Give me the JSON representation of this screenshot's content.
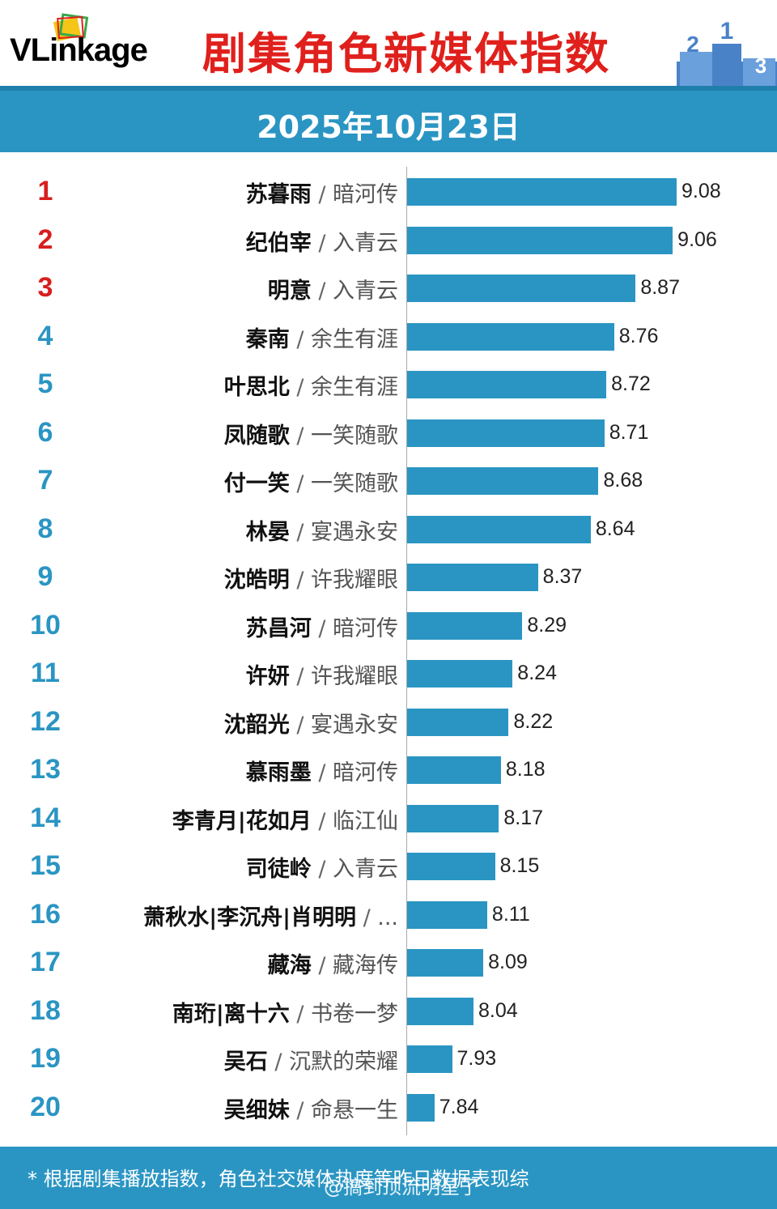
{
  "header": {
    "logo_text": "VLinkage",
    "title": "剧集角色新媒体指数"
  },
  "date": "2025年10月23日",
  "colors": {
    "accent": "#2a95c3",
    "title_red": "#e0201c",
    "top_rank_red": "#d81e1e",
    "rank_blue": "#2a95c3"
  },
  "chart_data": {
    "type": "bar",
    "orientation": "horizontal",
    "title": "剧集角色新媒体指数",
    "xlim": [
      7.7,
      9.2
    ],
    "grid": false,
    "rows": [
      {
        "rank": "1",
        "name": "苏暮雨",
        "drama": "暗河传",
        "value": 9.08,
        "value_label": "9.08"
      },
      {
        "rank": "2",
        "name": "纪伯宰",
        "drama": "入青云",
        "value": 9.06,
        "value_label": "9.06"
      },
      {
        "rank": "3",
        "name": "明意",
        "drama": "入青云",
        "value": 8.87,
        "value_label": "8.87"
      },
      {
        "rank": "4",
        "name": "秦南",
        "drama": "余生有涯",
        "value": 8.76,
        "value_label": "8.76"
      },
      {
        "rank": "5",
        "name": "叶思北",
        "drama": "余生有涯",
        "value": 8.72,
        "value_label": "8.72"
      },
      {
        "rank": "6",
        "name": "凤随歌",
        "drama": "一笑随歌",
        "value": 8.71,
        "value_label": "8.71"
      },
      {
        "rank": "7",
        "name": "付一笑",
        "drama": "一笑随歌",
        "value": 8.68,
        "value_label": "8.68"
      },
      {
        "rank": "8",
        "name": "林晏",
        "drama": "宴遇永安",
        "value": 8.64,
        "value_label": "8.64"
      },
      {
        "rank": "9",
        "name": "沈皓明",
        "drama": "许我耀眼",
        "value": 8.37,
        "value_label": "8.37"
      },
      {
        "rank": "10",
        "name": "苏昌河",
        "drama": "暗河传",
        "value": 8.29,
        "value_label": "8.29"
      },
      {
        "rank": "11",
        "name": "许妍",
        "drama": "许我耀眼",
        "value": 8.24,
        "value_label": "8.24"
      },
      {
        "rank": "12",
        "name": "沈韶光",
        "drama": "宴遇永安",
        "value": 8.22,
        "value_label": "8.22"
      },
      {
        "rank": "13",
        "name": "慕雨墨",
        "drama": "暗河传",
        "value": 8.18,
        "value_label": "8.18"
      },
      {
        "rank": "14",
        "name": "李青月|花如月",
        "drama": "临江仙",
        "value": 8.17,
        "value_label": "8.17"
      },
      {
        "rank": "15",
        "name": "司徒岭",
        "drama": "入青云",
        "value": 8.15,
        "value_label": "8.15"
      },
      {
        "rank": "16",
        "name": "萧秋水|李沉舟|肖明明",
        "drama": "...",
        "value": 8.11,
        "value_label": "8.11"
      },
      {
        "rank": "17",
        "name": "藏海",
        "drama": "藏海传",
        "value": 8.09,
        "value_label": "8.09"
      },
      {
        "rank": "18",
        "name": "南珩|离十六",
        "drama": "书卷一梦",
        "value": 8.04,
        "value_label": "8.04"
      },
      {
        "rank": "19",
        "name": "吴石",
        "drama": "沉默的荣耀",
        "value": 7.93,
        "value_label": "7.93"
      },
      {
        "rank": "20",
        "name": "吴细妹",
        "drama": "命悬一生",
        "value": 7.84,
        "value_label": "7.84"
      }
    ]
  },
  "footer": {
    "note": "* 根据剧集播放指数，角色社交媒体热度等昨日数据表现综",
    "watermark": "@搞到顶流明星了"
  }
}
